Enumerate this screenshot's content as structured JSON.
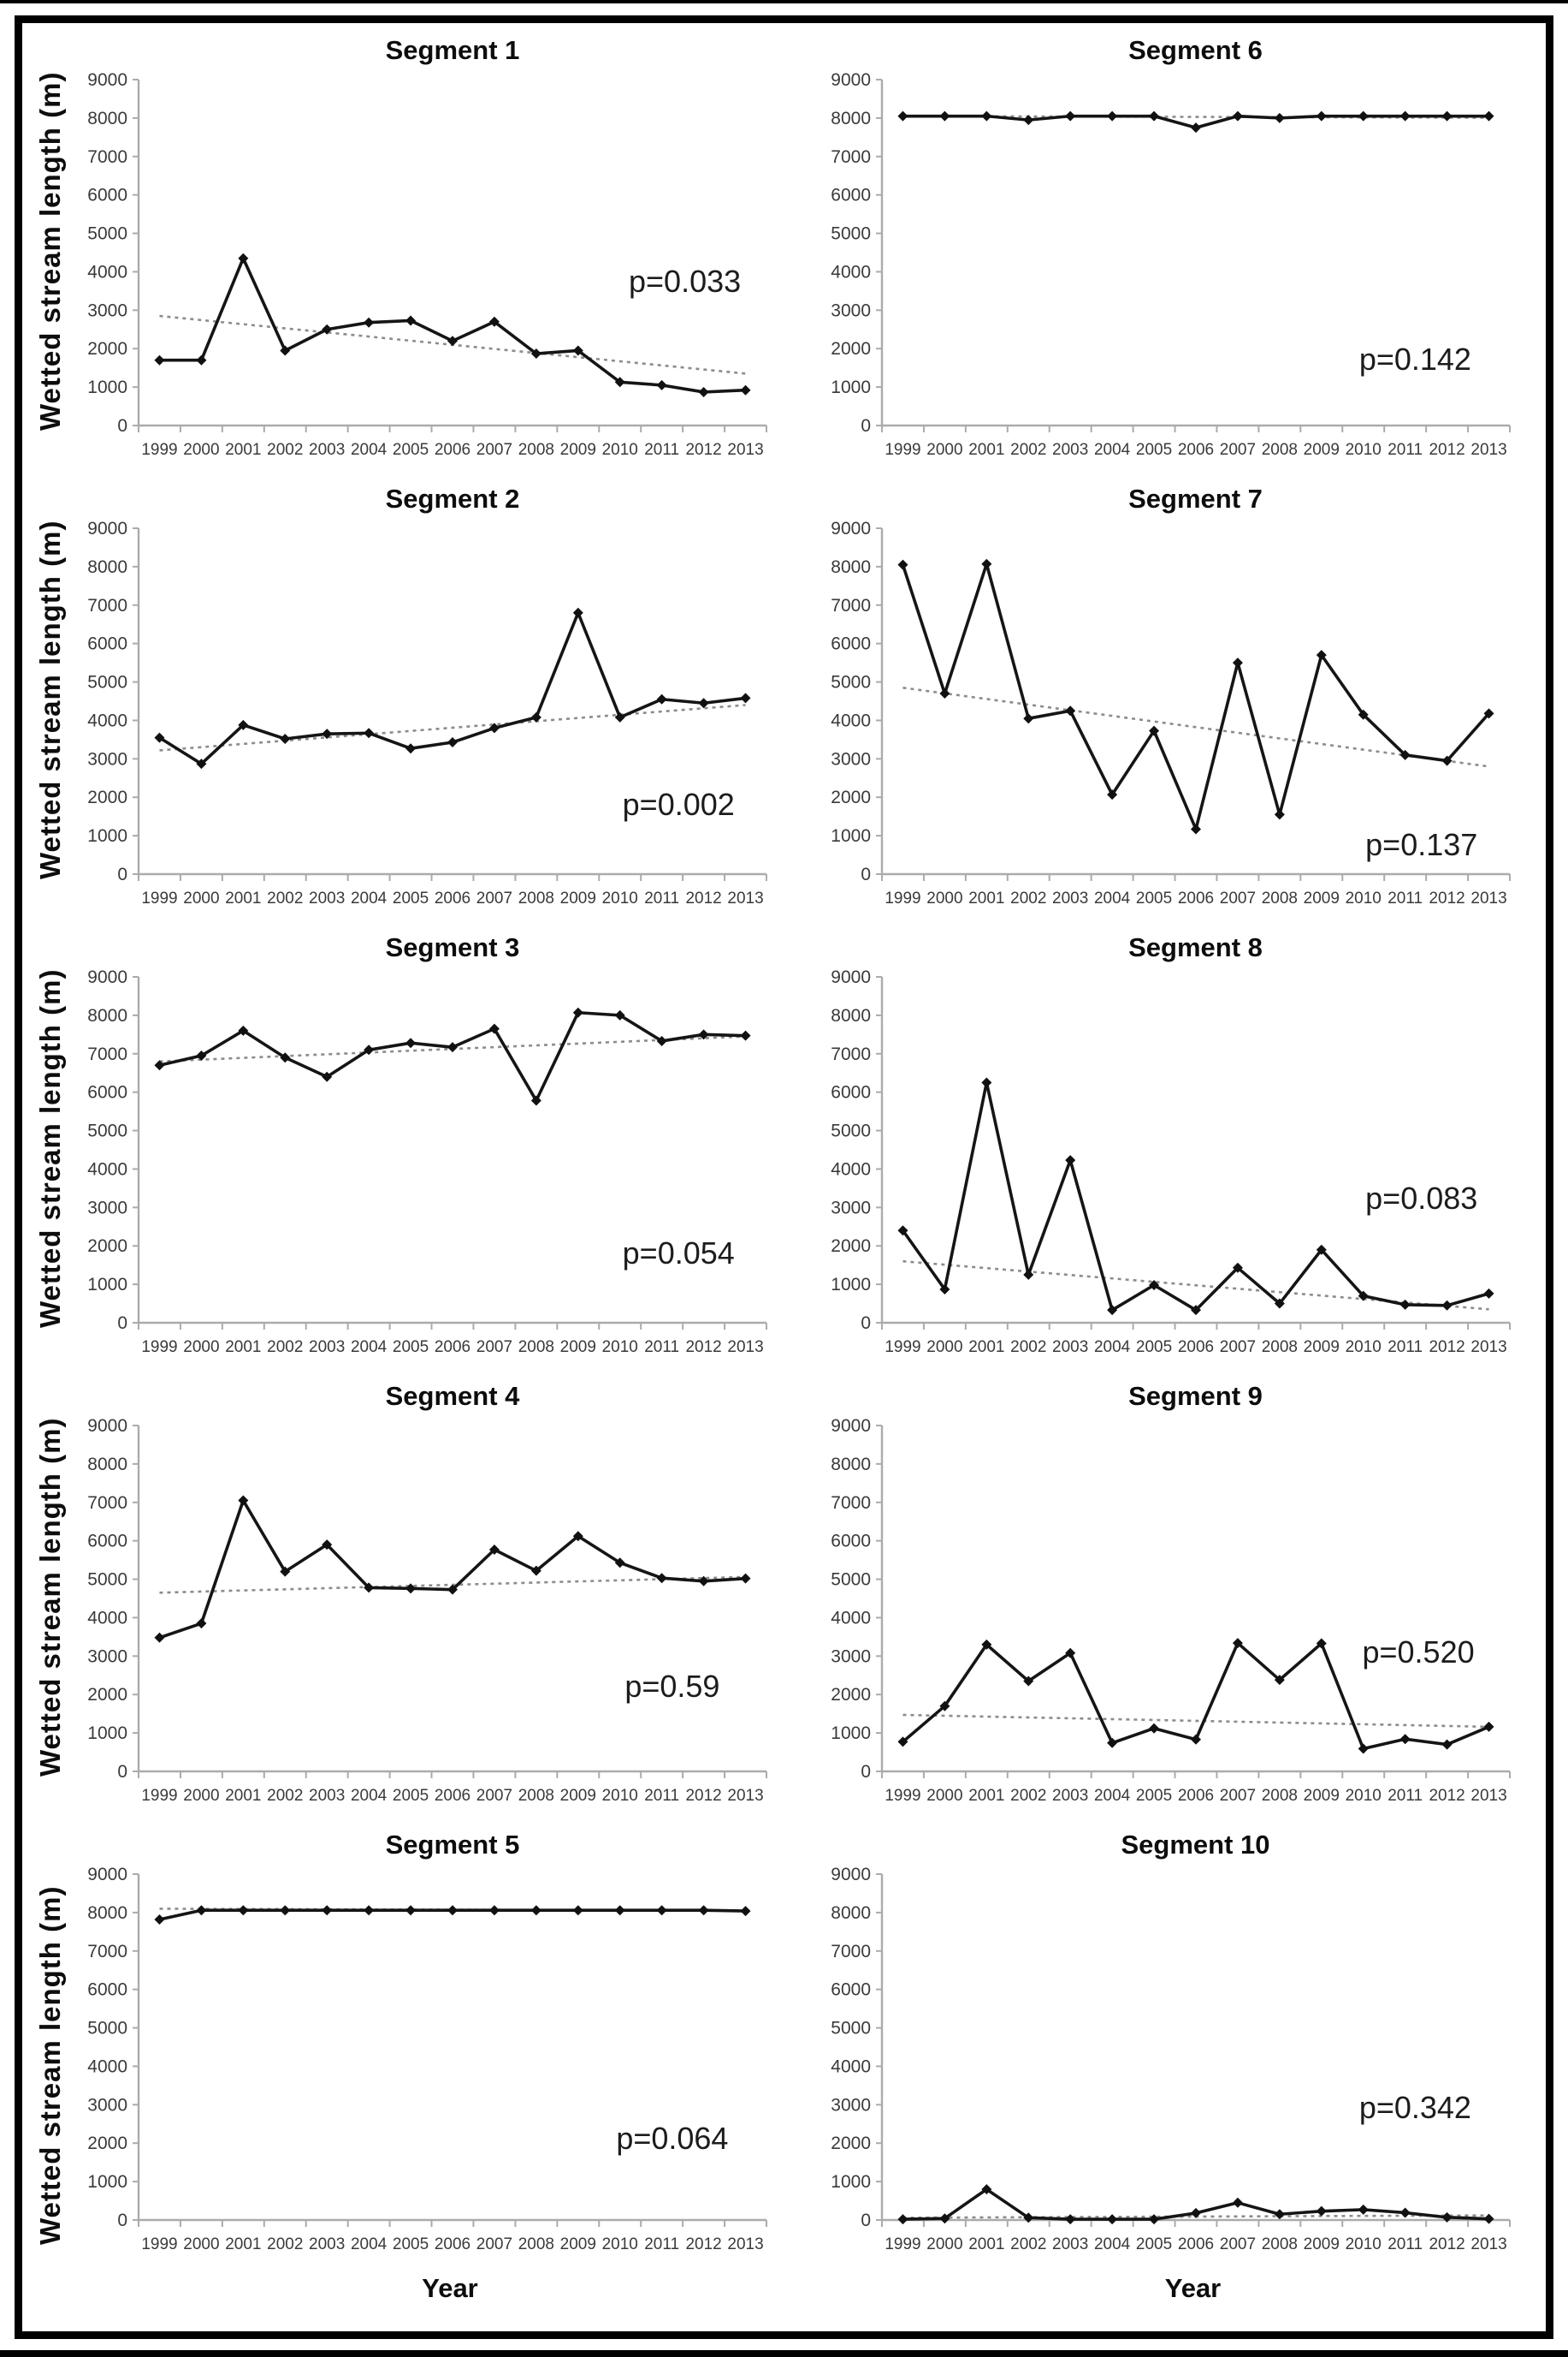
{
  "shared": {
    "ylabel": "Wetted stream length (m)",
    "xlabel": "Year",
    "years": [
      "1999",
      "2000",
      "2001",
      "2002",
      "2003",
      "2004",
      "2005",
      "2006",
      "2007",
      "2008",
      "2009",
      "2010",
      "2011",
      "2012",
      "2013"
    ],
    "yticks": [
      0,
      1000,
      2000,
      3000,
      4000,
      5000,
      6000,
      7000,
      8000,
      9000
    ],
    "ylim": [
      0,
      9000
    ],
    "colors": {
      "series_line": "#151515",
      "marker": "#111111",
      "trend_line": "#8c8c8c",
      "axis": "#ababab",
      "tick_label": "#3a3a3a",
      "annotation": "#1c1c1c"
    },
    "marker_shape": "diamond",
    "trend_style": "dashed",
    "grid": "off",
    "legend": "none"
  },
  "chart_data": [
    {
      "type": "line",
      "title": "Segment 1",
      "p_label": "p=0.033",
      "p_pos": {
        "x": 0.87,
        "y": 0.585
      },
      "values": [
        1700,
        1700,
        4350,
        1950,
        2500,
        2680,
        2730,
        2200,
        2700,
        1870,
        1950,
        1130,
        1050,
        870,
        920
      ],
      "trend": [
        2850,
        1350
      ]
    },
    {
      "type": "line",
      "title": "Segment 2",
      "p_label": "p=0.002",
      "p_pos": {
        "x": 0.86,
        "y": 0.8
      },
      "values": [
        3550,
        2870,
        3880,
        3520,
        3650,
        3670,
        3270,
        3430,
        3800,
        4080,
        6800,
        4080,
        4550,
        4450,
        4580
      ],
      "trend": [
        3220,
        4400
      ]
    },
    {
      "type": "line",
      "title": "Segment 3",
      "p_label": "p=0.054",
      "p_pos": {
        "x": 0.86,
        "y": 0.8
      },
      "values": [
        6700,
        6950,
        7600,
        6900,
        6400,
        7100,
        7280,
        7170,
        7650,
        5780,
        8070,
        8000,
        7330,
        7500,
        7470
      ],
      "trend": [
        6800,
        7450
      ]
    },
    {
      "type": "line",
      "title": "Segment 4",
      "p_label": "p=0.59",
      "p_pos": {
        "x": 0.85,
        "y": 0.755
      },
      "values": [
        3480,
        3850,
        7050,
        5200,
        5900,
        4780,
        4760,
        4730,
        5770,
        5220,
        6120,
        5430,
        5030,
        4950,
        5020
      ],
      "trend": [
        4650,
        5060
      ]
    },
    {
      "type": "line",
      "title": "Segment 5",
      "p_label": "p=0.064",
      "p_pos": {
        "x": 0.85,
        "y": 0.765
      },
      "values": [
        7820,
        8060,
        8060,
        8060,
        8060,
        8060,
        8060,
        8060,
        8060,
        8060,
        8060,
        8060,
        8060,
        8060,
        8040
      ],
      "trend": [
        8100,
        8050
      ]
    },
    {
      "type": "line",
      "title": "Segment 6",
      "p_label": "p=0.142",
      "p_pos": {
        "x": 0.85,
        "y": 0.81
      },
      "values": [
        8050,
        8050,
        8050,
        7950,
        8050,
        8050,
        8050,
        7750,
        8050,
        8000,
        8050,
        8050,
        8050,
        8050,
        8050
      ],
      "trend": [
        8050,
        8010
      ]
    },
    {
      "type": "line",
      "title": "Segment 7",
      "p_label": "p=0.137",
      "p_pos": {
        "x": 0.86,
        "y": 0.915
      },
      "values": [
        8050,
        4700,
        8070,
        4050,
        4250,
        2070,
        3730,
        1170,
        5500,
        1550,
        5700,
        4150,
        3100,
        2950,
        4180
      ],
      "trend": [
        4850,
        2800
      ]
    },
    {
      "type": "line",
      "title": "Segment 8",
      "p_label": "p=0.083",
      "p_pos": {
        "x": 0.86,
        "y": 0.64
      },
      "values": [
        2400,
        870,
        6250,
        1250,
        4230,
        330,
        980,
        330,
        1430,
        500,
        1900,
        700,
        470,
        450,
        760
      ],
      "trend": [
        1600,
        350
      ]
    },
    {
      "type": "line",
      "title": "Segment 9",
      "p_label": "p=0.520",
      "p_pos": {
        "x": 0.855,
        "y": 0.655
      },
      "values": [
        770,
        1700,
        3300,
        2350,
        3080,
        740,
        1120,
        830,
        3340,
        2380,
        3330,
        590,
        840,
        700,
        1160
      ],
      "trend": [
        1470,
        1160
      ]
    },
    {
      "type": "line",
      "title": "Segment 10",
      "p_label": "p=0.342",
      "p_pos": {
        "x": 0.85,
        "y": 0.675
      },
      "values": [
        20,
        40,
        800,
        60,
        20,
        20,
        20,
        180,
        450,
        150,
        230,
        270,
        190,
        70,
        30
      ],
      "trend": [
        60,
        120
      ]
    }
  ]
}
